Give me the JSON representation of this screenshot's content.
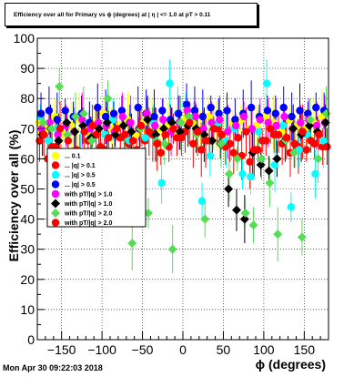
{
  "title": "Efficiency over all for Primary vs ϕ (degrees) at |  η | <= 1.0 at pT > 0.11",
  "timestamp": "Mon Apr 30 09:22:03 2018",
  "chart_data": {
    "type": "scatter",
    "title": "Efficiency over all for Primary vs ϕ (degrees) at |  η | <= 1.0 at pT > 0.11",
    "xlabel": "ϕ (degrees)",
    "ylabel": "Efficiency over all (%)",
    "xlim": [
      -180,
      180
    ],
    "ylim": [
      0,
      100
    ],
    "xticks": [
      -150,
      -100,
      -50,
      0,
      50,
      100,
      150
    ],
    "yticks": [
      0,
      10,
      20,
      30,
      40,
      50,
      60,
      70,
      80,
      90,
      100
    ],
    "grid": true,
    "legend_position": "left",
    "legend": [
      {
        "label": "... 0.1",
        "color": "#ffff00",
        "marker": "circle"
      },
      {
        "label": "... |q| > 0.1",
        "color": "#ff0000",
        "marker": "circle"
      },
      {
        "label": "... |q| > 0.5",
        "color": "#00ffff",
        "marker": "circle"
      },
      {
        "label": "... |q| > 0.5",
        "color": "#0000ff",
        "marker": "circle"
      },
      {
        "label": "with pT/|q| > 1.0",
        "color": "#ff00ff",
        "marker": "circle"
      },
      {
        "label": "with pT/|q| > 1.0",
        "color": "#000000",
        "marker": "diamond"
      },
      {
        "label": "with pT/|q| > 2.0",
        "color": "#55dd55",
        "marker": "diamond"
      },
      {
        "label": "with pT/|q| > 2.0",
        "color": "#ff0000",
        "marker": "circle"
      }
    ],
    "x": [
      -175,
      -165,
      -155,
      -145,
      -135,
      -125,
      -115,
      -105,
      -95,
      -85,
      -75,
      -65,
      -55,
      -45,
      -35,
      -25,
      -15,
      -5,
      5,
      15,
      25,
      35,
      45,
      55,
      65,
      75,
      85,
      95,
      105,
      115,
      125,
      135,
      145,
      155,
      165,
      175
    ],
    "series": [
      {
        "color": "#ffff00",
        "marker": "circle",
        "values": [
          72,
          70,
          74,
          68,
          71,
          73,
          69,
          72,
          75,
          70,
          71,
          73,
          68,
          72,
          74,
          70,
          71,
          69,
          73,
          72,
          70,
          74,
          71,
          68,
          72,
          73,
          70,
          71,
          74,
          72,
          69,
          73,
          71,
          70,
          72,
          74
        ]
      },
      {
        "color": "#ff0000",
        "marker": "circle",
        "values": [
          66,
          60,
          64,
          58,
          52,
          62,
          66,
          68,
          63,
          61,
          67,
          65,
          63,
          66,
          68,
          62,
          64,
          67,
          69,
          65,
          63,
          66,
          70,
          64,
          62,
          61,
          59,
          63,
          66,
          68,
          65,
          62,
          64,
          63,
          65,
          64
        ]
      },
      {
        "color": "#00ffff",
        "marker": "circle",
        "values": [
          74,
          66,
          70,
          44,
          56,
          60,
          72,
          55,
          68,
          73,
          54,
          66,
          52,
          67,
          72,
          52,
          85,
          75,
          78,
          74,
          46,
          61,
          72,
          66,
          70,
          55,
          54,
          69,
          85,
          58,
          71,
          44,
          63,
          68,
          55,
          66
        ]
      },
      {
        "color": "#0000ff",
        "marker": "circle",
        "values": [
          75,
          76,
          73,
          76,
          74,
          75,
          72,
          77,
          74,
          75,
          76,
          72,
          77,
          75,
          74,
          76,
          73,
          75,
          78,
          76,
          74,
          77,
          75,
          76,
          73,
          75,
          77,
          74,
          76,
          75,
          77,
          74,
          76,
          75,
          77,
          76
        ]
      },
      {
        "color": "#ff00ff",
        "marker": "circle",
        "values": [
          70,
          72,
          68,
          71,
          69,
          73,
          70,
          72,
          71,
          69,
          74,
          72,
          70,
          75,
          71,
          73,
          69,
          72,
          76,
          74,
          70,
          72,
          73,
          69,
          71,
          74,
          70,
          73,
          72,
          71,
          74,
          70,
          72,
          73,
          71,
          72
        ]
      },
      {
        "color": "#000000",
        "marker": "diamond",
        "values": [
          68,
          70,
          66,
          72,
          69,
          71,
          67,
          70,
          72,
          68,
          71,
          69,
          70,
          73,
          68,
          70,
          72,
          69,
          71,
          70,
          68,
          66,
          65,
          50,
          43,
          40,
          62,
          58,
          56,
          60,
          66,
          70,
          68,
          71,
          69,
          72
        ]
      },
      {
        "color": "#55dd55",
        "marker": "diamond",
        "values": [
          72,
          70,
          84,
          68,
          74,
          75,
          66,
          55,
          80,
          45,
          60,
          32,
          70,
          42,
          66,
          65,
          30,
          72,
          74,
          68,
          40,
          70,
          65,
          55,
          60,
          42,
          38,
          60,
          52,
          35,
          66,
          62,
          34,
          73,
          60,
          75
        ]
      },
      {
        "color": "#ff0000",
        "marker": "circle",
        "values": [
          68,
          64,
          70,
          66,
          63,
          69,
          71,
          64,
          67,
          70,
          68,
          66,
          71,
          69,
          65,
          68,
          70,
          67,
          72,
          69,
          66,
          70,
          68,
          65,
          67,
          69,
          63,
          66,
          70,
          68,
          67,
          65,
          69,
          66,
          68,
          64
        ]
      }
    ]
  }
}
